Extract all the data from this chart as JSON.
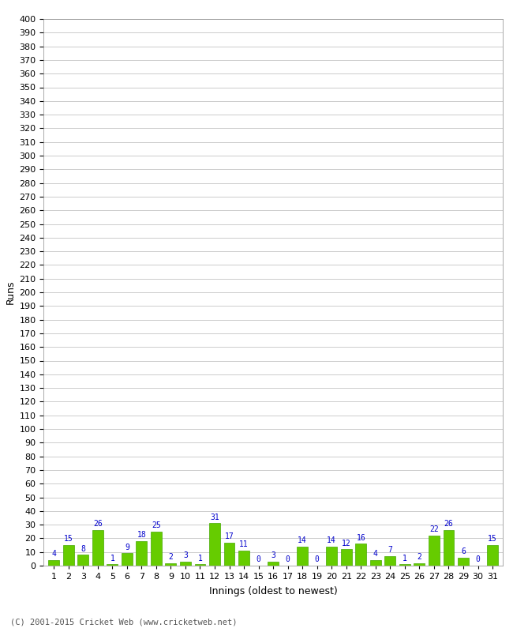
{
  "innings": [
    1,
    2,
    3,
    4,
    5,
    6,
    7,
    8,
    9,
    10,
    11,
    12,
    13,
    14,
    15,
    16,
    17,
    18,
    19,
    20,
    21,
    22,
    23,
    24,
    25,
    26,
    27,
    28,
    29,
    30,
    31
  ],
  "runs": [
    4,
    15,
    8,
    26,
    1,
    9,
    18,
    25,
    2,
    3,
    1,
    31,
    17,
    11,
    0,
    3,
    0,
    14,
    0,
    14,
    12,
    16,
    4,
    7,
    1,
    2,
    22,
    26,
    6,
    0,
    15
  ],
  "bar_color": "#66cc00",
  "bar_edge_color": "#44aa00",
  "label_color": "#0000cc",
  "ylabel": "Runs",
  "xlabel": "Innings (oldest to newest)",
  "ylim": [
    0,
    400
  ],
  "yticks": [
    0,
    10,
    20,
    30,
    40,
    50,
    60,
    70,
    80,
    90,
    100,
    110,
    120,
    130,
    140,
    150,
    160,
    170,
    180,
    190,
    200,
    210,
    220,
    230,
    240,
    250,
    260,
    270,
    280,
    290,
    300,
    310,
    320,
    330,
    340,
    350,
    360,
    370,
    380,
    390,
    400
  ],
  "grid_color": "#cccccc",
  "bg_color": "#ffffff",
  "footer": "(C) 2001-2015 Cricket Web (www.cricketweb.net)",
  "footer_color": "#555555",
  "tick_fontsize": 8,
  "label_fontsize": 9,
  "bar_label_fontsize": 7,
  "bar_width": 0.75
}
